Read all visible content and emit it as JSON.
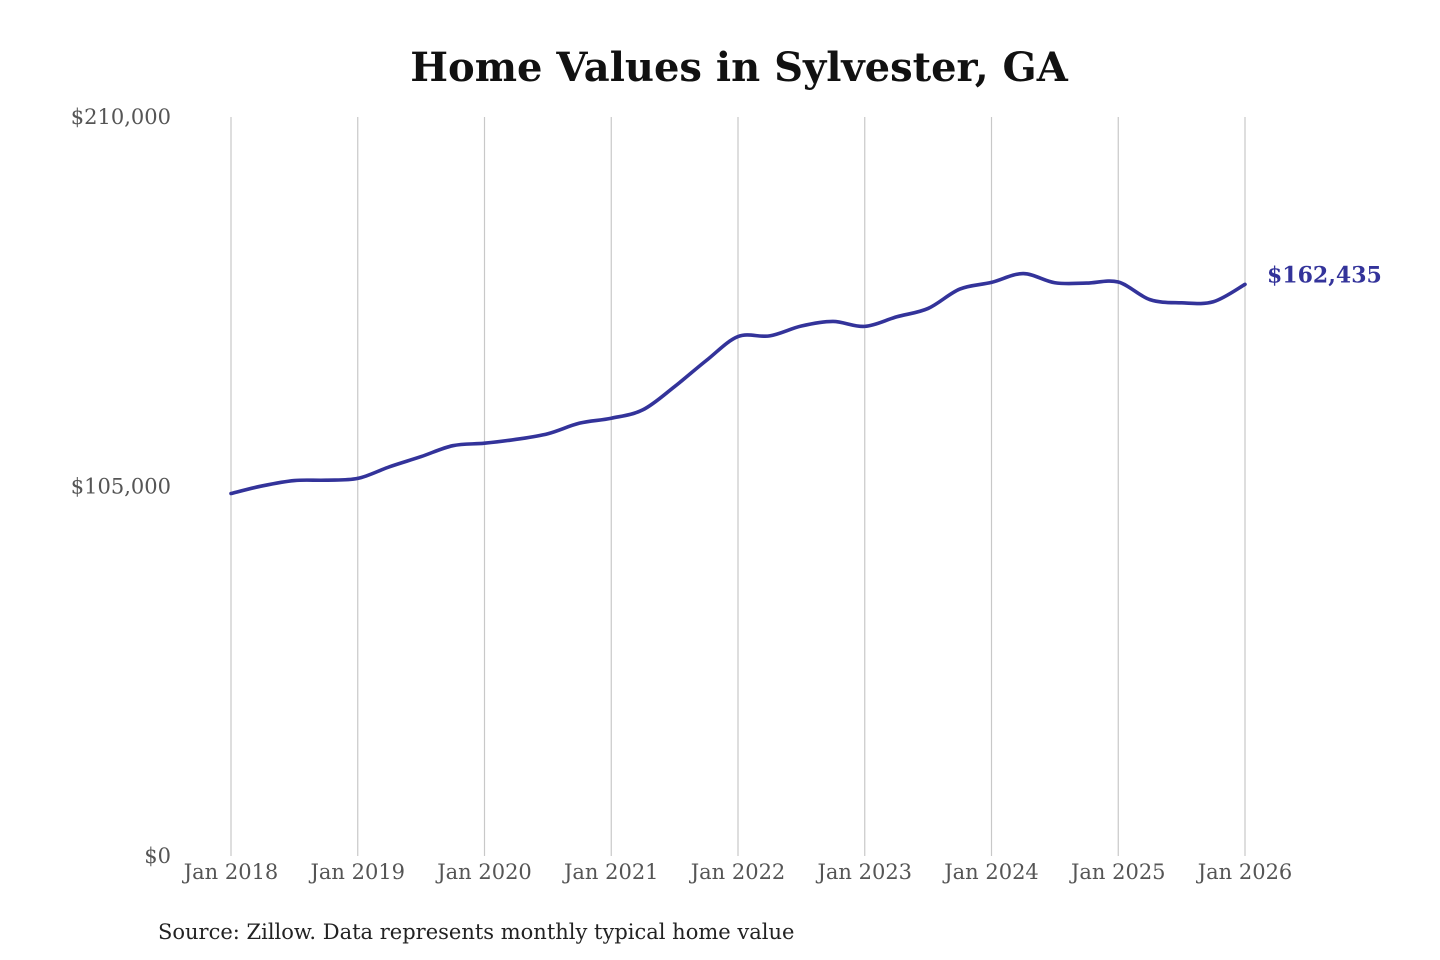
{
  "chart_data": {
    "type": "line",
    "title": "Home Values in Sylvester, GA",
    "xlabel": "",
    "ylabel": "",
    "source": "Source: Zillow. Data represents monthly typical home value",
    "ylim": [
      0,
      210000
    ],
    "yticks": [
      {
        "value": 0,
        "label": "$0"
      },
      {
        "value": 105000,
        "label": "$105,000"
      },
      {
        "value": 210000,
        "label": "$210,000"
      }
    ],
    "xticks": [
      "Jan 2018",
      "Jan 2019",
      "Jan 2020",
      "Jan 2021",
      "Jan 2022",
      "Jan 2023",
      "Jan 2024",
      "Jan 2025",
      "Jan 2026"
    ],
    "grid": {
      "vertical": true,
      "horizontal": false
    },
    "line_color": "#33339a",
    "end_label": "$162,435",
    "series": [
      {
        "name": "",
        "x": [
          "2018-01",
          "2018-04",
          "2018-07",
          "2018-10",
          "2019-01",
          "2019-04",
          "2019-07",
          "2019-10",
          "2020-01",
          "2020-04",
          "2020-07",
          "2020-10",
          "2021-01",
          "2021-04",
          "2021-07",
          "2021-10",
          "2022-01",
          "2022-04",
          "2022-07",
          "2022-10",
          "2023-01",
          "2023-04",
          "2023-07",
          "2023-10",
          "2024-01",
          "2024-04",
          "2024-07",
          "2024-10",
          "2025-01",
          "2025-04",
          "2025-07",
          "2025-10",
          "2026-01"
        ],
        "values": [
          103000,
          105200,
          106700,
          106800,
          107300,
          110600,
          113500,
          116600,
          117300,
          118400,
          120000,
          123000,
          124400,
          126800,
          133400,
          140800,
          147600,
          147800,
          150600,
          151900,
          150500,
          153200,
          155600,
          161100,
          163000,
          165500,
          162900,
          162800,
          163100,
          158100,
          157200,
          157500,
          162435
        ]
      }
    ]
  }
}
